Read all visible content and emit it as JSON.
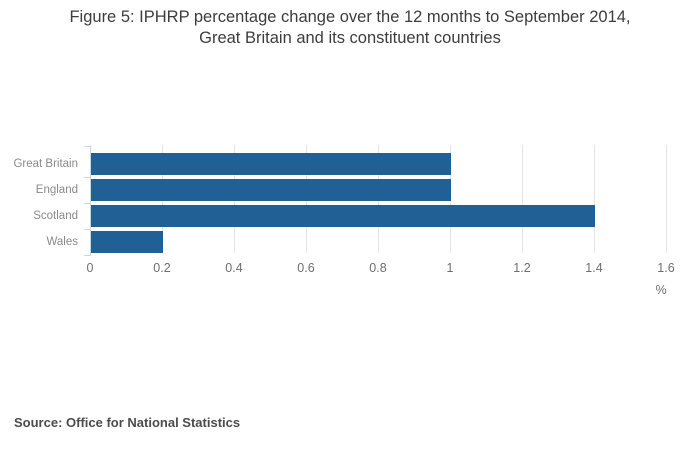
{
  "title": {
    "lines": [
      "Figure 5: IPHRP percentage change over the 12 months to September 2014,",
      "Great Britain and its constituent countries"
    ]
  },
  "chart_data": {
    "type": "bar",
    "orientation": "horizontal",
    "title": "Figure 5: IPHRP percentage change over the 12 months to September 2014, Great Britain and its constituent countries",
    "categories": [
      "Great Britain",
      "England",
      "Scotland",
      "Wales"
    ],
    "values": [
      1,
      1,
      1.4,
      0.2
    ],
    "xlabel": "%",
    "ylabel": "",
    "xlim": [
      0,
      1.6
    ],
    "xticks": [
      0,
      0.2,
      0.4,
      0.6,
      0.8,
      1,
      1.2,
      1.4,
      1.6
    ],
    "xtick_labels": [
      "0",
      "0.2",
      "0.4",
      "0.6",
      "0.8",
      "1",
      "1.2",
      "1.4",
      "1.6"
    ],
    "grid": true,
    "legend": "none",
    "colors": {
      "bar": "#206095",
      "axis": "#c9d7e3",
      "grid": "#e4e4e4",
      "tick_label": "#6f6f6f",
      "category_label": "#8a8a8a",
      "title": "#3d3d3d",
      "source": "#4c4c4c"
    }
  },
  "footer": {
    "source": "Source: Office for National Statistics"
  }
}
